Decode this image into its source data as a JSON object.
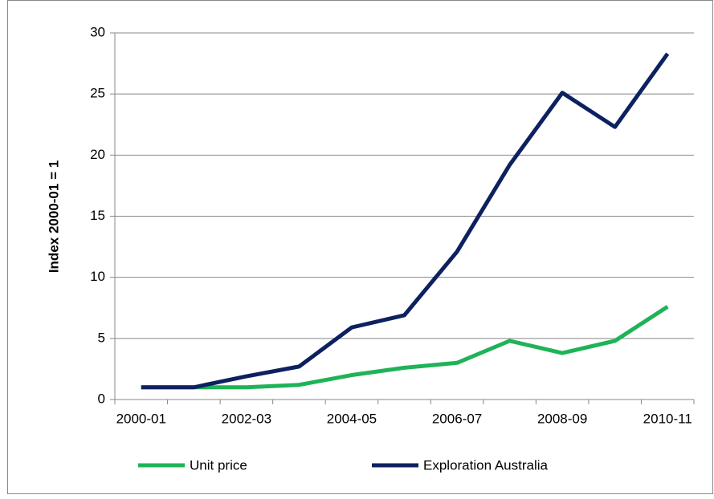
{
  "chart_data": {
    "type": "line",
    "y_label": "Index 2000-01 = 1",
    "categories": [
      "2000-01",
      null,
      "2002-03",
      null,
      "2004-05",
      null,
      "2006-07",
      null,
      "2008-09",
      null,
      "2010-11"
    ],
    "series": [
      {
        "name": "Unit price",
        "color": "#1fb358",
        "values": [
          1,
          1,
          1,
          1.2,
          2,
          2.6,
          3,
          4.8,
          3.8,
          4.8,
          7.6
        ]
      },
      {
        "name": "Exploration Australia",
        "color": "#0d2160",
        "values": [
          1,
          1,
          1.9,
          2.7,
          5.9,
          6.9,
          12.1,
          19.2,
          25.1,
          22.3,
          28.3
        ]
      }
    ],
    "ylim": [
      0,
      30
    ],
    "yticks": [
      0,
      5,
      10,
      15,
      20,
      25,
      30
    ],
    "grid": true
  }
}
